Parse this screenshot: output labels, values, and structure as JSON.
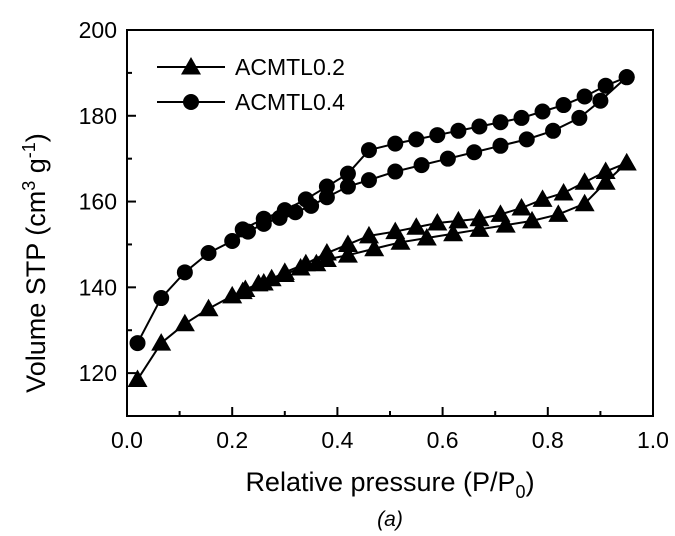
{
  "chart_data": {
    "type": "line",
    "title": "",
    "xlabel": "Relative pressure (P/P",
    "xlabel_sub": "0",
    "xlabel_end": ")",
    "ylabel": "Volume STP (cm",
    "ylabel_sup1": "3",
    "ylabel_mid": " g",
    "ylabel_sup2": "-1",
    "ylabel_end": ")",
    "xlim": [
      0.0,
      1.0
    ],
    "ylim": [
      110,
      200
    ],
    "xticks": [
      0.0,
      0.2,
      0.4,
      0.6,
      0.8,
      1.0
    ],
    "xtick_labels": [
      "0.0",
      "0.2",
      "0.4",
      "0.6",
      "0.8",
      "1.0"
    ],
    "yticks": [
      120,
      140,
      160,
      180,
      200
    ],
    "ytick_labels": [
      "120",
      "140",
      "160",
      "180",
      "200"
    ],
    "legend_position": "top-left",
    "caption": "(a)",
    "series": [
      {
        "name": "ACMTL0.2",
        "marker": "triangle",
        "color": "#000000",
        "adsorption": {
          "x": [
            0.02,
            0.065,
            0.11,
            0.155,
            0.2,
            0.225,
            0.25,
            0.275,
            0.3,
            0.33,
            0.36,
            0.38,
            0.42,
            0.47,
            0.52,
            0.57,
            0.62,
            0.67,
            0.72,
            0.77,
            0.82,
            0.87,
            0.91,
            0.95
          ],
          "y": [
            118.5,
            127.0,
            131.5,
            135.0,
            138.0,
            139.5,
            140.8,
            142.0,
            143.0,
            144.5,
            145.5,
            146.5,
            147.5,
            149.0,
            150.5,
            151.5,
            152.5,
            153.5,
            154.5,
            155.5,
            157.0,
            159.5,
            164.5,
            169.0
          ]
        },
        "desorption": {
          "x": [
            0.95,
            0.91,
            0.87,
            0.83,
            0.79,
            0.75,
            0.71,
            0.67,
            0.63,
            0.59,
            0.55,
            0.51,
            0.46,
            0.42,
            0.38,
            0.34,
            0.3,
            0.26,
            0.22
          ],
          "y": [
            169.0,
            167.0,
            164.5,
            162.0,
            160.5,
            158.5,
            157.0,
            156.0,
            155.5,
            155.0,
            154.0,
            153.0,
            152.0,
            150.0,
            148.0,
            145.5,
            143.5,
            141.0,
            139.0
          ]
        }
      },
      {
        "name": "ACMTL0.4",
        "marker": "circle",
        "color": "#000000",
        "adsorption": {
          "x": [
            0.02,
            0.065,
            0.11,
            0.155,
            0.2,
            0.23,
            0.26,
            0.29,
            0.32,
            0.35,
            0.38,
            0.42,
            0.46,
            0.51,
            0.56,
            0.61,
            0.66,
            0.71,
            0.76,
            0.81,
            0.86,
            0.9,
            0.95
          ],
          "y": [
            127.0,
            137.5,
            143.5,
            148.0,
            150.8,
            153.0,
            154.8,
            156.2,
            157.5,
            159.0,
            161.0,
            163.5,
            165.0,
            167.0,
            168.5,
            170.0,
            171.5,
            173.0,
            174.5,
            176.5,
            179.5,
            183.5,
            189.0
          ]
        },
        "desorption": {
          "x": [
            0.95,
            0.91,
            0.87,
            0.83,
            0.79,
            0.75,
            0.71,
            0.67,
            0.63,
            0.59,
            0.55,
            0.51,
            0.46,
            0.42,
            0.38,
            0.34,
            0.3,
            0.26,
            0.22
          ],
          "y": [
            189.0,
            187.0,
            184.5,
            182.5,
            181.0,
            179.5,
            178.5,
            177.5,
            176.5,
            175.5,
            174.5,
            173.5,
            172.0,
            166.5,
            163.5,
            160.5,
            158.0,
            156.0,
            153.5
          ]
        }
      }
    ]
  }
}
